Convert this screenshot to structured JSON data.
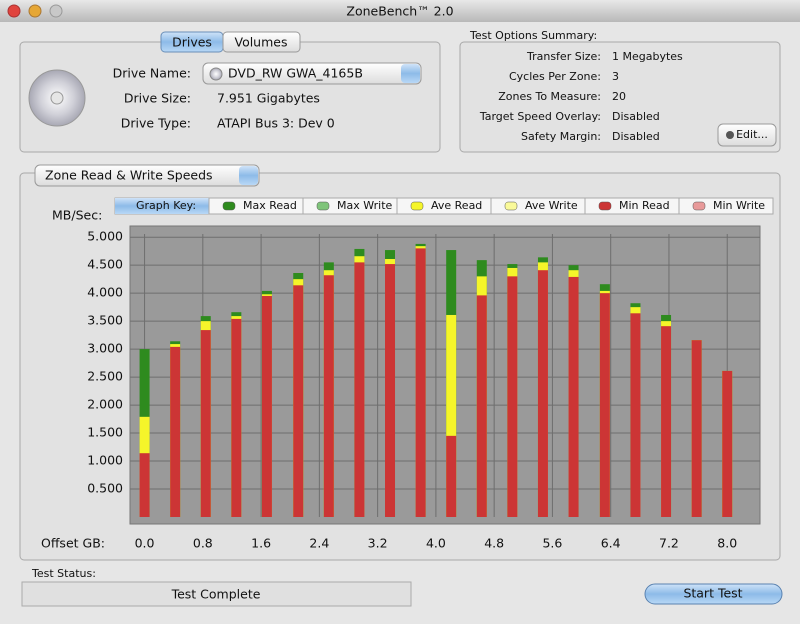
{
  "window": {
    "title": "ZoneBench™ 2.0"
  },
  "drive_panel": {
    "tabs": [
      "Drives",
      "Volumes"
    ],
    "fields": [
      {
        "label": "Drive Name:",
        "value": "DVD_RW GWA_4165B"
      },
      {
        "label": "Drive Size:",
        "value": "7.951 Gigabytes"
      },
      {
        "label": "Drive Type:",
        "value": "ATAPI Bus 3: Dev 0"
      }
    ]
  },
  "test_options": {
    "title": "Test Options Summary:",
    "rows": [
      {
        "label": "Transfer Size:",
        "value": "1 Megabytes"
      },
      {
        "label": "Cycles Per Zone:",
        "value": "3"
      },
      {
        "label": "Zones To Measure:",
        "value": "20"
      },
      {
        "label": "Target Speed Overlay:",
        "value": "Disabled"
      },
      {
        "label": "Safety Margin:",
        "value": "Disabled"
      }
    ],
    "edit_button": "Edit..."
  },
  "chart_data": {
    "type": "bar",
    "selector": "Zone Read & Write Speeds",
    "graph_key_title": "Graph Key:",
    "ylabel": "MB/Sec:",
    "xlabel": "Offset GB:",
    "x": [
      0,
      0.42,
      0.84,
      1.26,
      1.68,
      2.11,
      2.53,
      2.95,
      3.37,
      3.79,
      4.21,
      4.63,
      5.05,
      5.47,
      5.89,
      6.32,
      6.74,
      7.16,
      7.58,
      8.0
    ],
    "xlim": [
      -0.2,
      8.45
    ],
    "ylim": [
      0,
      5.2
    ],
    "grid": true,
    "xticks": [
      {
        "value": 0,
        "label": "0.0"
      },
      {
        "value": 0.8,
        "label": "0.8"
      },
      {
        "value": 1.6,
        "label": "1.6"
      },
      {
        "value": 2.4,
        "label": "2.4"
      },
      {
        "value": 3.2,
        "label": "3.2"
      },
      {
        "value": 4,
        "label": "4.0"
      },
      {
        "value": 4.8,
        "label": "4.8"
      },
      {
        "value": 5.6,
        "label": "5.6"
      },
      {
        "value": 6.4,
        "label": "6.4"
      },
      {
        "value": 7.2,
        "label": "7.2"
      },
      {
        "value": 8,
        "label": "8.0"
      }
    ],
    "yticks": [
      {
        "value": 0.5,
        "label": "0.500"
      },
      {
        "value": 1,
        "label": "1.000"
      },
      {
        "value": 1.5,
        "label": "1.500"
      },
      {
        "value": 2,
        "label": "2.000"
      },
      {
        "value": 2.5,
        "label": "2.500"
      },
      {
        "value": 3,
        "label": "3.000"
      },
      {
        "value": 3.5,
        "label": "3.500"
      },
      {
        "value": 4,
        "label": "4.000"
      },
      {
        "value": 4.5,
        "label": "4.500"
      },
      {
        "value": 5,
        "label": "5.000"
      }
    ],
    "series": [
      {
        "name": "Max Read",
        "color": "#2e8b1e",
        "values": [
          3.0,
          3.14,
          3.59,
          3.66,
          4.04,
          4.36,
          4.55,
          4.79,
          4.77,
          4.88,
          4.77,
          4.59,
          4.52,
          4.64,
          4.5,
          4.16,
          3.82,
          3.61,
          3.16,
          2.61
        ]
      },
      {
        "name": "Max Write",
        "color": "#7fc47a",
        "values": [
          null,
          null,
          null,
          null,
          null,
          null,
          null,
          null,
          null,
          null,
          null,
          null,
          null,
          null,
          null,
          null,
          null,
          null,
          null,
          null
        ]
      },
      {
        "name": "Ave Read",
        "color": "#f5f52a",
        "values": [
          1.79,
          3.09,
          3.5,
          3.59,
          3.98,
          4.25,
          4.41,
          4.66,
          4.61,
          4.84,
          3.61,
          4.3,
          4.45,
          4.55,
          4.41,
          4.04,
          3.75,
          3.5,
          3.16,
          2.61
        ]
      },
      {
        "name": "Ave Write",
        "color": "#fafa9a",
        "values": [
          null,
          null,
          null,
          null,
          null,
          null,
          null,
          null,
          null,
          null,
          null,
          null,
          null,
          null,
          null,
          null,
          null,
          null,
          null,
          null
        ]
      },
      {
        "name": "Min Read",
        "color": "#cc3535",
        "values": [
          1.14,
          3.04,
          3.34,
          3.54,
          3.95,
          4.14,
          4.32,
          4.55,
          4.52,
          4.8,
          1.45,
          3.96,
          4.3,
          4.41,
          4.29,
          4.0,
          3.64,
          3.41,
          3.16,
          2.61
        ]
      },
      {
        "name": "Min Write",
        "color": "#e89a9a",
        "values": [
          null,
          null,
          null,
          null,
          null,
          null,
          null,
          null,
          null,
          null,
          null,
          null,
          null,
          null,
          null,
          null,
          null,
          null,
          null,
          null
        ]
      }
    ]
  },
  "status": {
    "label": "Test Status:",
    "value": "Test Complete",
    "button": "Start Test"
  }
}
